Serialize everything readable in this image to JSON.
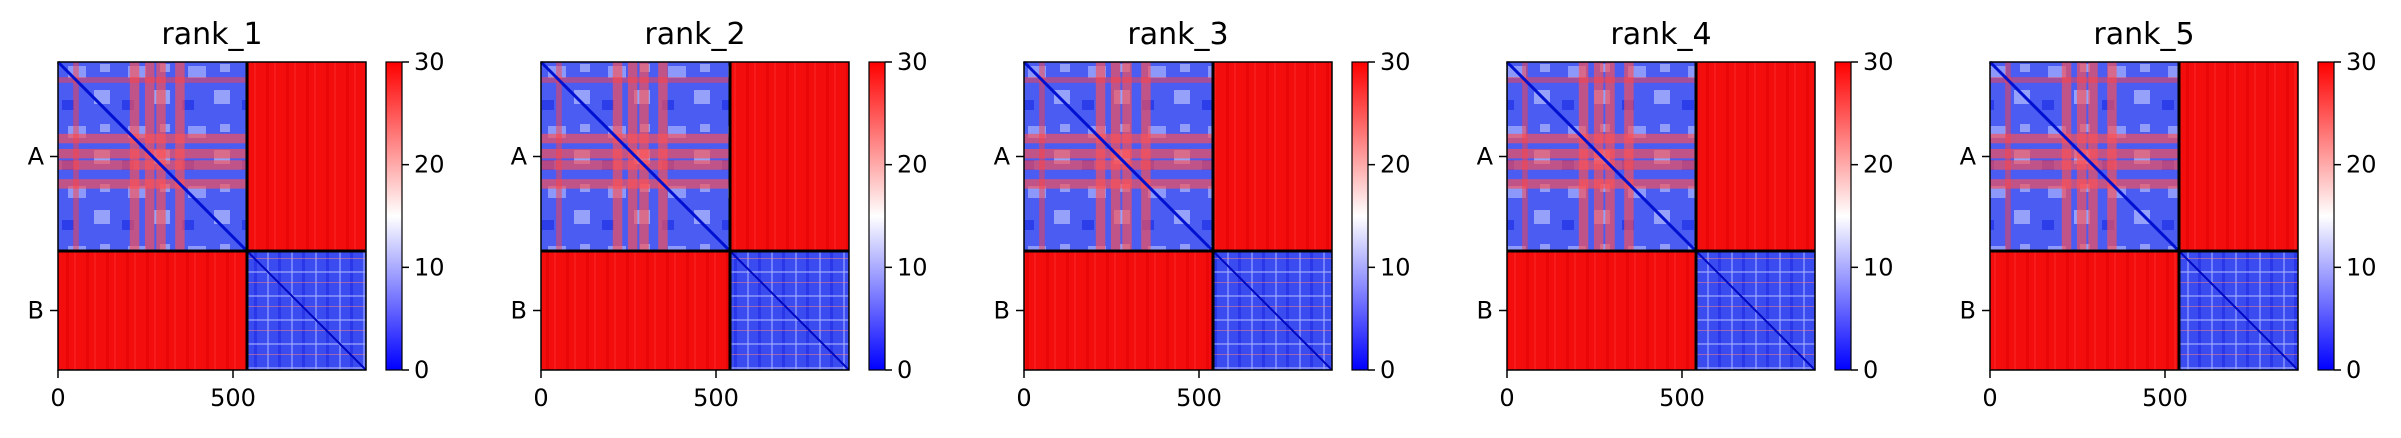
{
  "chart_data": {
    "type": "heatmap",
    "colormap": {
      "name": "bwr",
      "min_color": "#0000ff",
      "mid_color": "#ffffff",
      "max_color": "#ff0000"
    },
    "value_range": [
      0,
      30
    ],
    "colorbar_ticks": [
      "0",
      "10",
      "20",
      "30"
    ],
    "x_range": [
      0,
      880
    ],
    "x_ticks": [
      0,
      500
    ],
    "x_tick_labels": [
      "0",
      "500"
    ],
    "chain_boundary": 540,
    "chain_labels": [
      "A",
      "B"
    ],
    "panels": [
      {
        "title": "rank_1"
      },
      {
        "title": "rank_2"
      },
      {
        "title": "rank_3"
      },
      {
        "title": "rank_4"
      },
      {
        "title": "rank_5"
      }
    ]
  }
}
